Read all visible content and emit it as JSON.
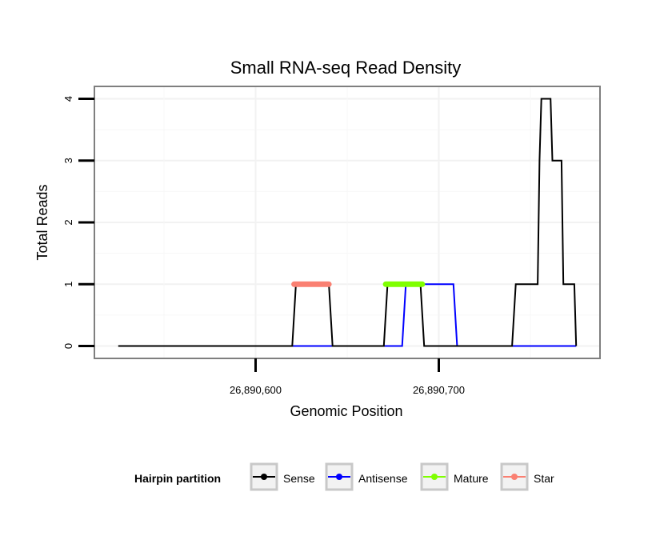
{
  "chart_data": {
    "type": "line",
    "title": "Small RNA-seq Read Density",
    "xlabel": "Genomic Position",
    "ylabel": "Total Reads",
    "xlim": [
      26890512,
      26890788
    ],
    "ylim": [
      -0.2,
      4.2
    ],
    "x_ticks": [
      {
        "value": 26890600,
        "label": "26,890,600"
      },
      {
        "value": 26890700,
        "label": "26,890,700"
      }
    ],
    "y_ticks": [
      {
        "value": 0,
        "label": "0"
      },
      {
        "value": 1,
        "label": "1"
      },
      {
        "value": 2,
        "label": "2"
      },
      {
        "value": 3,
        "label": "3"
      },
      {
        "value": 4,
        "label": "4"
      }
    ],
    "legend": {
      "title": "Hairpin partition",
      "position": "bottom",
      "entries": [
        {
          "name": "Sense",
          "color": "#000000"
        },
        {
          "name": "Antisense",
          "color": "#0000ff"
        },
        {
          "name": "Mature",
          "color": "#7fff00"
        },
        {
          "name": "Star",
          "color": "#fa8072"
        }
      ]
    },
    "series": [
      {
        "name": "Sense",
        "color": "#000000",
        "x": [
          26890525,
          26890620,
          26890622,
          26890640,
          26890642,
          26890670,
          26890672,
          26890690,
          26890692,
          26890740,
          26890742,
          26890754,
          26890755,
          26890756,
          26890761,
          26890762,
          26890767,
          26890768,
          26890774,
          26890775
        ],
        "y": [
          0,
          0,
          1,
          1,
          0,
          0,
          1,
          1,
          0,
          0,
          1,
          1,
          3,
          4,
          4,
          3,
          3,
          1,
          1,
          0
        ]
      },
      {
        "name": "Antisense",
        "color": "#0000ff",
        "x": [
          26890620,
          26890680,
          26890682,
          26890708,
          26890710,
          26890775
        ],
        "y": [
          0,
          0,
          1,
          1,
          0,
          0
        ]
      },
      {
        "name": "Mature",
        "color": "#7fff00",
        "x": [
          26890671,
          26890691
        ],
        "y": [
          1,
          1
        ]
      },
      {
        "name": "Star",
        "color": "#fa8072",
        "x": [
          26890621,
          26890640
        ],
        "y": [
          1,
          1
        ]
      }
    ]
  }
}
